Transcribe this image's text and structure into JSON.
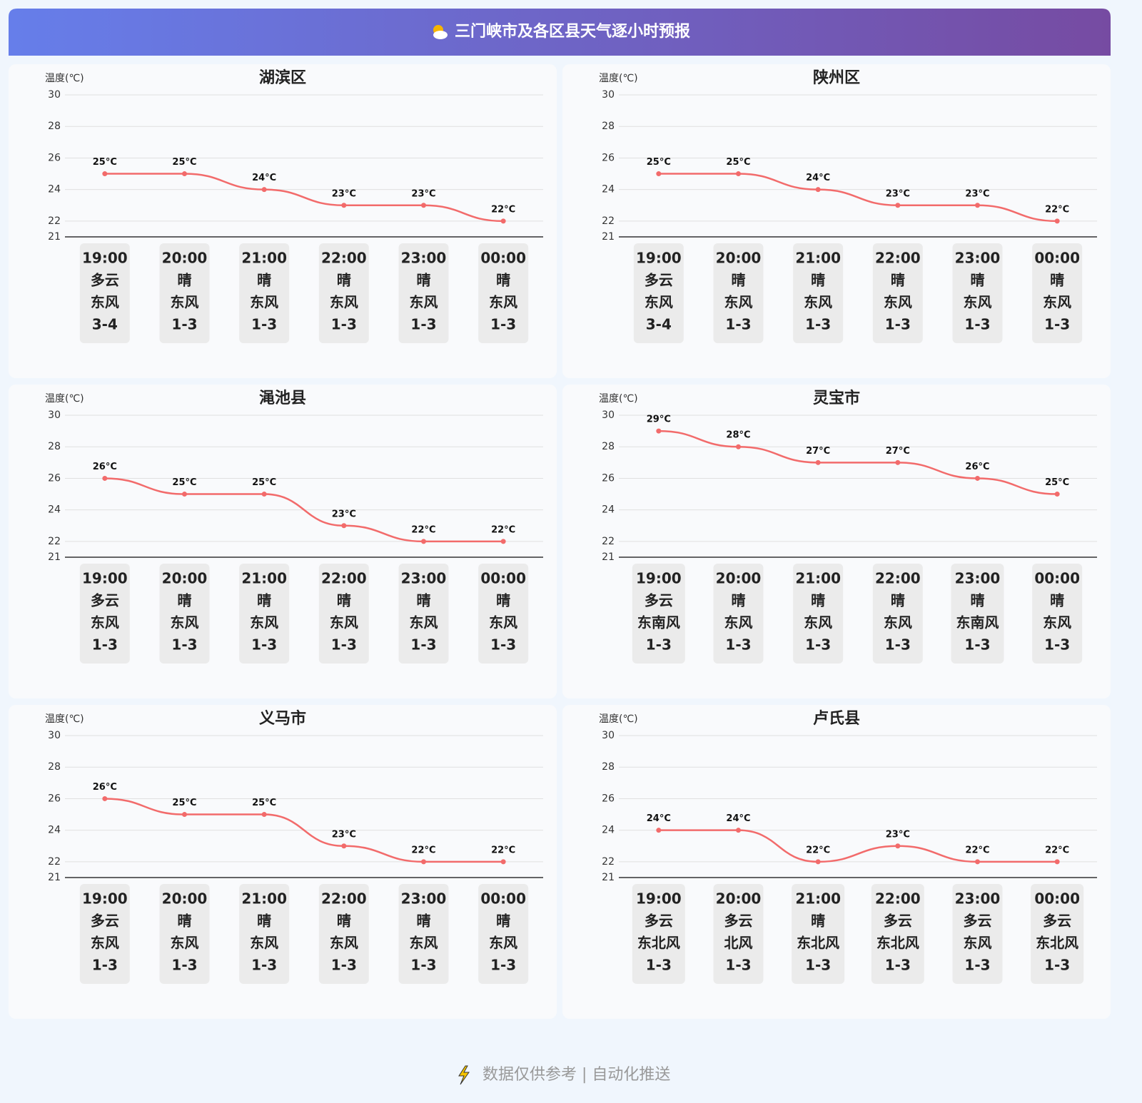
{
  "header": {
    "title": "三门峡市及各区县天气逐小时预报"
  },
  "chart_data": [
    {
      "type": "line",
      "title": "湖滨区",
      "ylabel": "温度(℃)",
      "color": "#f26b6b",
      "categories": [
        "19:00",
        "20:00",
        "21:00",
        "22:00",
        "23:00",
        "00:00"
      ],
      "values": [
        25,
        25,
        24,
        23,
        23,
        22
      ],
      "value_labels": [
        "25°C",
        "25°C",
        "24°C",
        "23°C",
        "23°C",
        "22°C"
      ],
      "weather": [
        "多云",
        "晴",
        "晴",
        "晴",
        "晴",
        "晴"
      ],
      "wind": [
        "东风",
        "东风",
        "东风",
        "东风",
        "东风",
        "东风"
      ],
      "wind_level": [
        "3-4",
        "1-3",
        "1-3",
        "1-3",
        "1-3",
        "1-3"
      ],
      "ylim": [
        21,
        30
      ],
      "yticks": [
        21,
        22,
        24,
        26,
        28,
        30
      ],
      "grid": true
    },
    {
      "type": "line",
      "title": "陕州区",
      "ylabel": "温度(℃)",
      "color": "#f26b6b",
      "categories": [
        "19:00",
        "20:00",
        "21:00",
        "22:00",
        "23:00",
        "00:00"
      ],
      "values": [
        25,
        25,
        24,
        23,
        23,
        22
      ],
      "value_labels": [
        "25°C",
        "25°C",
        "24°C",
        "23°C",
        "23°C",
        "22°C"
      ],
      "weather": [
        "多云",
        "晴",
        "晴",
        "晴",
        "晴",
        "晴"
      ],
      "wind": [
        "东风",
        "东风",
        "东风",
        "东风",
        "东风",
        "东风"
      ],
      "wind_level": [
        "3-4",
        "1-3",
        "1-3",
        "1-3",
        "1-3",
        "1-3"
      ],
      "ylim": [
        21,
        30
      ],
      "yticks": [
        21,
        22,
        24,
        26,
        28,
        30
      ],
      "grid": true
    },
    {
      "type": "line",
      "title": "渑池县",
      "ylabel": "温度(℃)",
      "color": "#f26b6b",
      "categories": [
        "19:00",
        "20:00",
        "21:00",
        "22:00",
        "23:00",
        "00:00"
      ],
      "values": [
        26,
        25,
        25,
        23,
        22,
        22
      ],
      "value_labels": [
        "26°C",
        "25°C",
        "25°C",
        "23°C",
        "22°C",
        "22°C"
      ],
      "weather": [
        "多云",
        "晴",
        "晴",
        "晴",
        "晴",
        "晴"
      ],
      "wind": [
        "东风",
        "东风",
        "东风",
        "东风",
        "东风",
        "东风"
      ],
      "wind_level": [
        "1-3",
        "1-3",
        "1-3",
        "1-3",
        "1-3",
        "1-3"
      ],
      "ylim": [
        21,
        30
      ],
      "yticks": [
        21,
        22,
        24,
        26,
        28,
        30
      ],
      "grid": true
    },
    {
      "type": "line",
      "title": "灵宝市",
      "ylabel": "温度(℃)",
      "color": "#f26b6b",
      "categories": [
        "19:00",
        "20:00",
        "21:00",
        "22:00",
        "23:00",
        "00:00"
      ],
      "values": [
        29,
        28,
        27,
        27,
        26,
        25
      ],
      "value_labels": [
        "29°C",
        "28°C",
        "27°C",
        "27°C",
        "26°C",
        "25°C"
      ],
      "weather": [
        "多云",
        "晴",
        "晴",
        "晴",
        "晴",
        "晴"
      ],
      "wind": [
        "东南风",
        "东风",
        "东风",
        "东风",
        "东南风",
        "东风"
      ],
      "wind_level": [
        "1-3",
        "1-3",
        "1-3",
        "1-3",
        "1-3",
        "1-3"
      ],
      "ylim": [
        21,
        30
      ],
      "yticks": [
        21,
        22,
        24,
        26,
        28,
        30
      ],
      "grid": true
    },
    {
      "type": "line",
      "title": "义马市",
      "ylabel": "温度(℃)",
      "color": "#f26b6b",
      "categories": [
        "19:00",
        "20:00",
        "21:00",
        "22:00",
        "23:00",
        "00:00"
      ],
      "values": [
        26,
        25,
        25,
        23,
        22,
        22
      ],
      "value_labels": [
        "26°C",
        "25°C",
        "25°C",
        "23°C",
        "22°C",
        "22°C"
      ],
      "weather": [
        "多云",
        "晴",
        "晴",
        "晴",
        "晴",
        "晴"
      ],
      "wind": [
        "东风",
        "东风",
        "东风",
        "东风",
        "东风",
        "东风"
      ],
      "wind_level": [
        "1-3",
        "1-3",
        "1-3",
        "1-3",
        "1-3",
        "1-3"
      ],
      "ylim": [
        21,
        30
      ],
      "yticks": [
        21,
        22,
        24,
        26,
        28,
        30
      ],
      "grid": true
    },
    {
      "type": "line",
      "title": "卢氏县",
      "ylabel": "温度(℃)",
      "color": "#f26b6b",
      "categories": [
        "19:00",
        "20:00",
        "21:00",
        "22:00",
        "23:00",
        "00:00"
      ],
      "values": [
        24,
        24,
        22,
        23,
        22,
        22
      ],
      "value_labels": [
        "24°C",
        "24°C",
        "22°C",
        "23°C",
        "22°C",
        "22°C"
      ],
      "weather": [
        "多云",
        "多云",
        "晴",
        "多云",
        "多云",
        "多云"
      ],
      "wind": [
        "东北风",
        "北风",
        "东北风",
        "东北风",
        "东风",
        "东北风"
      ],
      "wind_level": [
        "1-3",
        "1-3",
        "1-3",
        "1-3",
        "1-3",
        "1-3"
      ],
      "ylim": [
        21,
        30
      ],
      "yticks": [
        21,
        22,
        24,
        26,
        28,
        30
      ],
      "grid": true
    }
  ],
  "footer": {
    "text": "数据仅供参考 | 自动化推送"
  }
}
